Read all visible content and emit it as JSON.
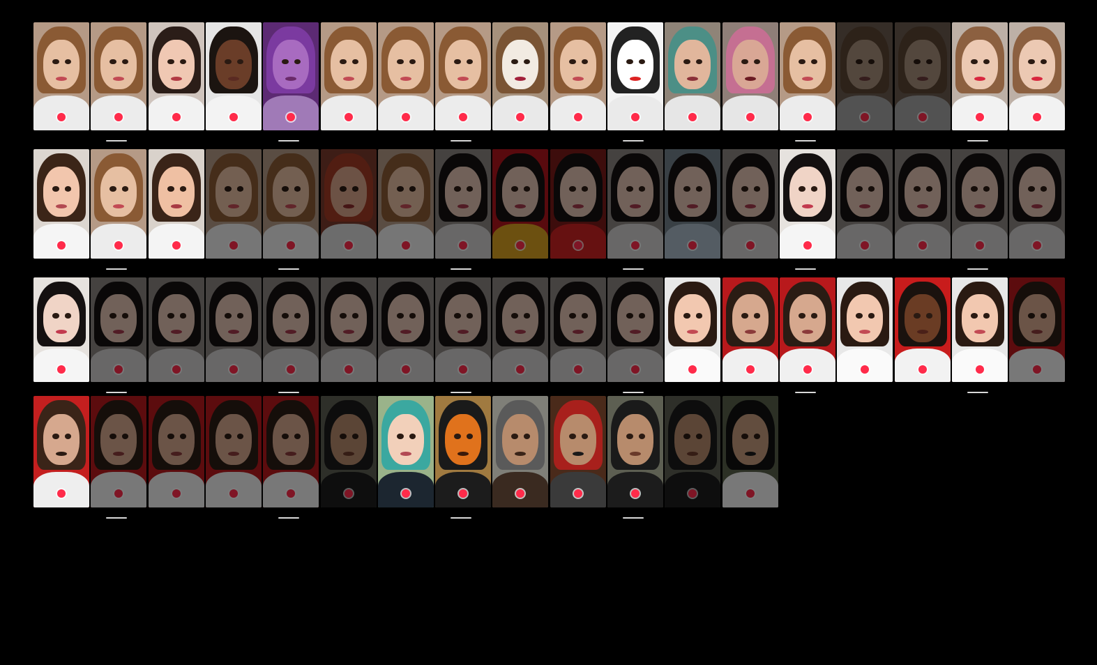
{
  "title": "",
  "rows": [
    {
      "thumbs": [
        {
          "name": "light-brunette",
          "theme": "warm",
          "dim": false
        },
        {
          "name": "light-brunette",
          "theme": "warm",
          "dim": false
        },
        {
          "name": "cartoon",
          "theme": "cartoon",
          "dim": false
        },
        {
          "name": "dark-cartoon",
          "theme": "dark-cartoon",
          "dim": false
        },
        {
          "name": "purple",
          "theme": "purple",
          "dim": false
        },
        {
          "name": "pink-glasses",
          "theme": "warm",
          "dim": false
        },
        {
          "name": "warm",
          "theme": "warm",
          "dim": false
        },
        {
          "name": "warm",
          "theme": "warm",
          "dim": false
        },
        {
          "name": "clown",
          "theme": "clown",
          "dim": false
        },
        {
          "name": "warm",
          "theme": "warm",
          "dim": false
        },
        {
          "name": "comic",
          "theme": "comic",
          "dim": false
        },
        {
          "name": "teal-hair",
          "theme": "teal",
          "dim": false
        },
        {
          "name": "pink-hair",
          "theme": "pink",
          "dim": false
        },
        {
          "name": "warm",
          "theme": "warm",
          "dim": false
        },
        {
          "name": "muted",
          "theme": "muted",
          "dim": true
        },
        {
          "name": "muted",
          "theme": "muted",
          "dim": true
        },
        {
          "name": "big-lips",
          "theme": "lips",
          "dim": false
        },
        {
          "name": "big-lips",
          "theme": "lips",
          "dim": false
        }
      ]
    },
    {
      "thumbs": [
        {
          "name": "cartoon",
          "theme": "cartoon-light",
          "dim": false
        },
        {
          "name": "warm",
          "theme": "warm",
          "dim": false
        },
        {
          "name": "cartoon",
          "theme": "cartoon-dark-hair",
          "dim": false
        },
        {
          "name": "muted",
          "theme": "warm",
          "dim": true
        },
        {
          "name": "muted",
          "theme": "warm",
          "dim": true
        },
        {
          "name": "red",
          "theme": "redhead",
          "dim": true
        },
        {
          "name": "muted",
          "theme": "warm",
          "dim": true
        },
        {
          "name": "asian",
          "theme": "asian",
          "dim": true
        },
        {
          "name": "red-frame",
          "theme": "red",
          "dim": true
        },
        {
          "name": "asian",
          "theme": "asian-red",
          "dim": true
        },
        {
          "name": "asian",
          "theme": "asian",
          "dim": true
        },
        {
          "name": "asian",
          "theme": "asian-blue",
          "dim": true
        },
        {
          "name": "asian",
          "theme": "asian",
          "dim": true
        },
        {
          "name": "asian",
          "theme": "asian-light",
          "dim": false
        },
        {
          "name": "asian",
          "theme": "asian",
          "dim": true
        },
        {
          "name": "asian",
          "theme": "asian",
          "dim": true
        },
        {
          "name": "asian",
          "theme": "asian",
          "dim": true
        },
        {
          "name": "asian",
          "theme": "asian",
          "dim": true
        }
      ]
    },
    {
      "thumbs": [
        {
          "name": "illustration",
          "theme": "asian-light",
          "dim": false
        },
        {
          "name": "asian",
          "theme": "asian",
          "dim": true
        },
        {
          "name": "asian",
          "theme": "asian",
          "dim": true
        },
        {
          "name": "asian",
          "theme": "asian",
          "dim": true
        },
        {
          "name": "asian",
          "theme": "asian",
          "dim": true
        },
        {
          "name": "asian",
          "theme": "asian",
          "dim": true
        },
        {
          "name": "asian",
          "theme": "asian",
          "dim": true
        },
        {
          "name": "asian",
          "theme": "asian",
          "dim": true
        },
        {
          "name": "asian",
          "theme": "asian",
          "dim": true
        },
        {
          "name": "asian",
          "theme": "asian",
          "dim": true
        },
        {
          "name": "asian",
          "theme": "asian",
          "dim": true
        },
        {
          "name": "cartoon-boy",
          "theme": "cartoon-boy",
          "dim": false
        },
        {
          "name": "red-bg",
          "theme": "red-boy",
          "dim": false
        },
        {
          "name": "red-bg",
          "theme": "red-boy",
          "dim": false
        },
        {
          "name": "cartoon-boy",
          "theme": "cartoon-boy",
          "dim": false
        },
        {
          "name": "dark-cartoon",
          "theme": "dark-cartoon-boy",
          "dim": false
        },
        {
          "name": "cartoon-boy",
          "theme": "cartoon-boy",
          "dim": false
        },
        {
          "name": "red-bg",
          "theme": "red-boy",
          "dim": true
        }
      ]
    },
    {
      "thumbs": [
        {
          "name": "beard",
          "theme": "beard",
          "dim": false
        },
        {
          "name": "red-bg",
          "theme": "red-boy",
          "dim": true
        },
        {
          "name": "red-bg",
          "theme": "red-boy",
          "dim": true
        },
        {
          "name": "red-bg",
          "theme": "red-boy",
          "dim": true
        },
        {
          "name": "red-bg",
          "theme": "red-boy",
          "dim": true
        },
        {
          "name": "man",
          "theme": "man",
          "dim": true
        },
        {
          "name": "anime",
          "theme": "anime",
          "dim": false
        },
        {
          "name": "orange-mask",
          "theme": "orange",
          "dim": false
        },
        {
          "name": "viking",
          "theme": "viking",
          "dim": false
        },
        {
          "name": "pirate",
          "theme": "pirate",
          "dim": false
        },
        {
          "name": "cat-ears",
          "theme": "man",
          "dim": false
        },
        {
          "name": "man",
          "theme": "man",
          "dim": true
        },
        {
          "name": "bowler-hat",
          "theme": "bowler",
          "dim": true
        }
      ]
    }
  ],
  "colors": {
    "background": "#000000",
    "record": "#ff2b4a"
  }
}
